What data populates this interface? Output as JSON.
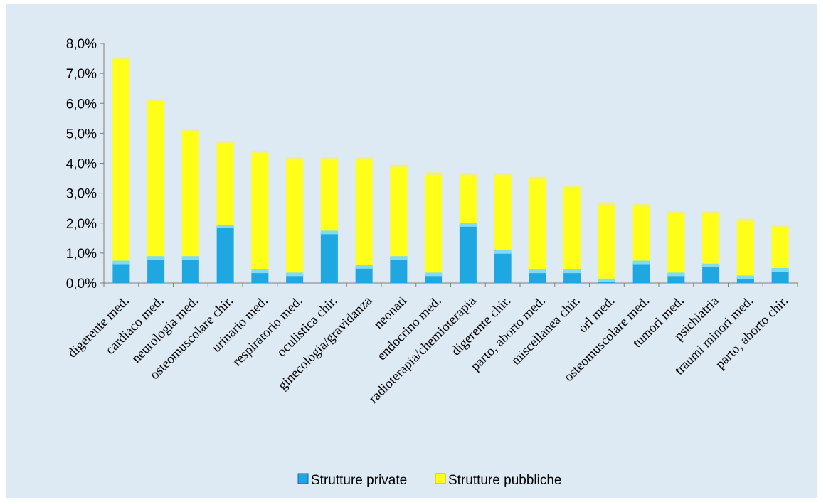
{
  "colors": {
    "background": "#dde9f3",
    "private": "#1ea7e1",
    "private_top": "#7fdcf6",
    "public": "#ffff1a",
    "public_top": "#f2f27a",
    "axis": "#808080"
  },
  "chart_data": {
    "type": "bar",
    "stacked": true,
    "categories": [
      "digerente med.",
      "cardiaco med.",
      "neurologia med.",
      "osteomuscolare chir.",
      "urinario med.",
      "respiratorio med.",
      "oculistica chir.",
      "ginecologia/gravidanza",
      "neonati",
      "endocrino med.",
      "radioterapia/chemioterapia",
      "digerente chir.",
      "parto, aborto med.",
      "miscellanea chir.",
      "orl med.",
      "osteomuscolare med.",
      "tumori med.",
      "psichiatria",
      "traumi minori med.",
      "parto, aborto chir."
    ],
    "series": [
      {
        "name": "Strutture private",
        "values": [
          0.7,
          0.85,
          0.85,
          1.9,
          0.4,
          0.3,
          1.7,
          0.55,
          0.85,
          0.3,
          1.95,
          1.05,
          0.4,
          0.4,
          0.1,
          0.7,
          0.3,
          0.6,
          0.2,
          0.45
        ]
      },
      {
        "name": "Strutture pubbliche",
        "values": [
          6.8,
          5.25,
          4.25,
          2.8,
          3.95,
          3.85,
          2.45,
          3.6,
          3.05,
          3.35,
          1.65,
          2.55,
          3.1,
          2.8,
          2.55,
          1.9,
          2.05,
          1.75,
          1.9,
          1.45
        ]
      }
    ],
    "yticks": [
      "0,0%",
      "1,0%",
      "2,0%",
      "3,0%",
      "4,0%",
      "5,0%",
      "6,0%",
      "7,0%",
      "8,0%"
    ],
    "ylim": [
      0,
      8
    ],
    "grid": false,
    "legend_position": "bottom"
  }
}
